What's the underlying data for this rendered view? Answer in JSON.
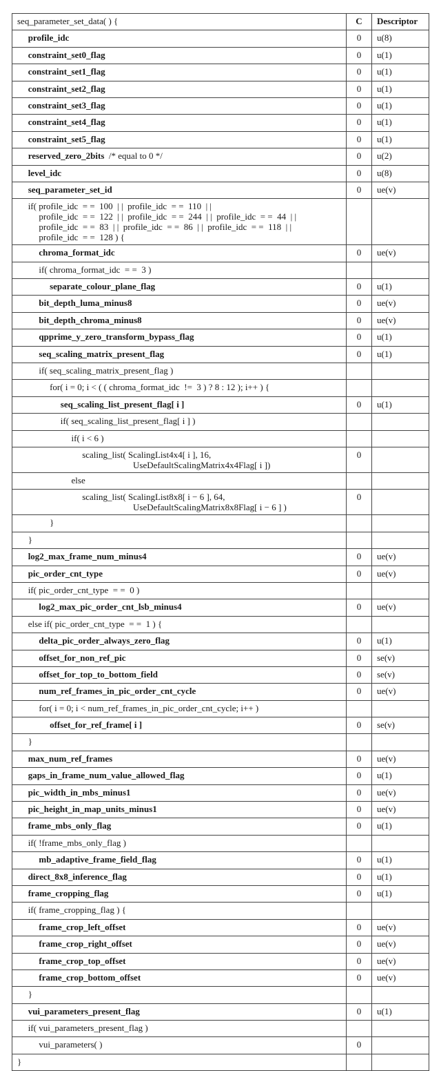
{
  "header": {
    "syntax": "seq_parameter_set_data( ) {",
    "c": "C",
    "descriptor": "Descriptor"
  },
  "rows": [
    {
      "d": 1,
      "b": true,
      "lines": [
        "profile_idc"
      ],
      "c": "0",
      "desc": "u(8)"
    },
    {
      "d": 1,
      "b": true,
      "lines": [
        "constraint_set0_flag"
      ],
      "c": "0",
      "desc": "u(1)"
    },
    {
      "d": 1,
      "b": true,
      "lines": [
        "constraint_set1_flag"
      ],
      "c": "0",
      "desc": "u(1)"
    },
    {
      "d": 1,
      "b": true,
      "lines": [
        "constraint_set2_flag"
      ],
      "c": "0",
      "desc": "u(1)"
    },
    {
      "d": 1,
      "b": true,
      "lines": [
        "constraint_set3_flag"
      ],
      "c": "0",
      "desc": "u(1)"
    },
    {
      "d": 1,
      "b": true,
      "lines": [
        "constraint_set4_flag"
      ],
      "c": "0",
      "desc": "u(1)"
    },
    {
      "d": 1,
      "b": true,
      "lines": [
        "constraint_set5_flag"
      ],
      "c": "0",
      "desc": "u(1)"
    },
    {
      "d": 1,
      "b": true,
      "lines": [
        "reserved_zero_2bits"
      ],
      "comment": "  /* equal to 0 */",
      "c": "0",
      "desc": "u(2)"
    },
    {
      "d": 1,
      "b": true,
      "lines": [
        "level_idc"
      ],
      "c": "0",
      "desc": "u(8)"
    },
    {
      "d": 1,
      "b": true,
      "lines": [
        "seq_parameter_set_id"
      ],
      "c": "0",
      "desc": "ue(v)"
    },
    {
      "d": 1,
      "b": false,
      "lines": [
        "if( profile_idc  = =  100  | |  profile_idc  = =  110  | |",
        "profile_idc  = =  122  | |  profile_idc  = =  244  | |  profile_idc  = =  44  | |",
        "profile_idc  = =  83  | |  profile_idc  = =  86  | |  profile_idc  = =  118  | |",
        "profile_idc  = =  128 ) {"
      ],
      "c": "",
      "desc": ""
    },
    {
      "d": 2,
      "b": true,
      "lines": [
        "chroma_format_idc"
      ],
      "c": "0",
      "desc": "ue(v)"
    },
    {
      "d": 2,
      "b": false,
      "lines": [
        "if( chroma_format_idc  = =  3 )"
      ],
      "c": "",
      "desc": ""
    },
    {
      "d": 3,
      "b": true,
      "lines": [
        "separate_colour_plane_flag"
      ],
      "c": "0",
      "desc": "u(1)"
    },
    {
      "d": 2,
      "b": true,
      "lines": [
        "bit_depth_luma_minus8"
      ],
      "c": "0",
      "desc": "ue(v)"
    },
    {
      "d": 2,
      "b": true,
      "lines": [
        "bit_depth_chroma_minus8"
      ],
      "c": "0",
      "desc": "ue(v)"
    },
    {
      "d": 2,
      "b": true,
      "lines": [
        "qpprime_y_zero_transform_bypass_flag"
      ],
      "c": "0",
      "desc": "u(1)"
    },
    {
      "d": 2,
      "b": true,
      "lines": [
        "seq_scaling_matrix_present_flag"
      ],
      "c": "0",
      "desc": "u(1)"
    },
    {
      "d": 2,
      "b": false,
      "lines": [
        "if( seq_scaling_matrix_present_flag )"
      ],
      "c": "",
      "desc": ""
    },
    {
      "d": 3,
      "b": false,
      "lines": [
        "for( i = 0; i < ( ( chroma_format_idc  !=  3 ) ? 8 : 12 ); i++ ) {"
      ],
      "c": "",
      "desc": ""
    },
    {
      "d": 4,
      "b": true,
      "lines": [
        "seq_scaling_list_present_flag[ i ]"
      ],
      "c": "0",
      "desc": "u(1)"
    },
    {
      "d": 4,
      "b": false,
      "lines": [
        "if( seq_scaling_list_present_flag[ i ] )"
      ],
      "c": "",
      "desc": ""
    },
    {
      "d": 5,
      "b": false,
      "lines": [
        "if( i < 6 )"
      ],
      "c": "",
      "desc": ""
    },
    {
      "d": 6,
      "b": false,
      "wide": true,
      "lines": [
        "scaling_list( ScalingList4x4[ i ], 16,",
        "UseDefaultScalingMatrix4x4Flag[ i ])"
      ],
      "c": "0",
      "desc": ""
    },
    {
      "d": 5,
      "b": false,
      "lines": [
        "else"
      ],
      "c": "",
      "desc": ""
    },
    {
      "d": 6,
      "b": false,
      "wide": true,
      "lines": [
        "scaling_list( ScalingList8x8[ i − 6 ], 64,",
        "UseDefaultScalingMatrix8x8Flag[ i − 6 ] )"
      ],
      "c": "0",
      "desc": ""
    },
    {
      "d": 3,
      "b": false,
      "lines": [
        "}"
      ],
      "c": "",
      "desc": ""
    },
    {
      "d": 1,
      "b": false,
      "lines": [
        "}"
      ],
      "c": "",
      "desc": ""
    },
    {
      "d": 1,
      "b": true,
      "lines": [
        "log2_max_frame_num_minus4"
      ],
      "c": "0",
      "desc": "ue(v)"
    },
    {
      "d": 1,
      "b": true,
      "lines": [
        "pic_order_cnt_type"
      ],
      "c": "0",
      "desc": "ue(v)"
    },
    {
      "d": 1,
      "b": false,
      "lines": [
        "if( pic_order_cnt_type  = =  0 )"
      ],
      "c": "",
      "desc": ""
    },
    {
      "d": 2,
      "b": true,
      "lines": [
        "log2_max_pic_order_cnt_lsb_minus4"
      ],
      "c": "0",
      "desc": "ue(v)"
    },
    {
      "d": 1,
      "b": false,
      "lines": [
        "else if( pic_order_cnt_type  = =  1 ) {"
      ],
      "c": "",
      "desc": ""
    },
    {
      "d": 2,
      "b": true,
      "lines": [
        "delta_pic_order_always_zero_flag"
      ],
      "c": "0",
      "desc": "u(1)"
    },
    {
      "d": 2,
      "b": true,
      "lines": [
        "offset_for_non_ref_pic"
      ],
      "c": "0",
      "desc": "se(v)"
    },
    {
      "d": 2,
      "b": true,
      "lines": [
        "offset_for_top_to_bottom_field"
      ],
      "c": "0",
      "desc": "se(v)"
    },
    {
      "d": 2,
      "b": true,
      "lines": [
        "num_ref_frames_in_pic_order_cnt_cycle"
      ],
      "c": "0",
      "desc": "ue(v)"
    },
    {
      "d": 2,
      "b": false,
      "lines": [
        "for( i = 0; i < num_ref_frames_in_pic_order_cnt_cycle; i++ )"
      ],
      "c": "",
      "desc": ""
    },
    {
      "d": 3,
      "b": true,
      "lines": [
        "offset_for_ref_frame[ i ]"
      ],
      "c": "0",
      "desc": "se(v)"
    },
    {
      "d": 1,
      "b": false,
      "lines": [
        "}"
      ],
      "c": "",
      "desc": ""
    },
    {
      "d": 1,
      "b": true,
      "lines": [
        "max_num_ref_frames"
      ],
      "c": "0",
      "desc": "ue(v)"
    },
    {
      "d": 1,
      "b": true,
      "lines": [
        "gaps_in_frame_num_value_allowed_flag"
      ],
      "c": "0",
      "desc": "u(1)"
    },
    {
      "d": 1,
      "b": true,
      "lines": [
        "pic_width_in_mbs_minus1"
      ],
      "c": "0",
      "desc": "ue(v)"
    },
    {
      "d": 1,
      "b": true,
      "lines": [
        "pic_height_in_map_units_minus1"
      ],
      "c": "0",
      "desc": "ue(v)"
    },
    {
      "d": 1,
      "b": true,
      "lines": [
        "frame_mbs_only_flag"
      ],
      "c": "0",
      "desc": "u(1)"
    },
    {
      "d": 1,
      "b": false,
      "lines": [
        "if( !frame_mbs_only_flag )"
      ],
      "c": "",
      "desc": ""
    },
    {
      "d": 2,
      "b": true,
      "lines": [
        "mb_adaptive_frame_field_flag"
      ],
      "c": "0",
      "desc": "u(1)"
    },
    {
      "d": 1,
      "b": true,
      "lines": [
        "direct_8x8_inference_flag"
      ],
      "c": "0",
      "desc": "u(1)"
    },
    {
      "d": 1,
      "b": true,
      "lines": [
        "frame_cropping_flag"
      ],
      "c": "0",
      "desc": "u(1)"
    },
    {
      "d": 1,
      "b": false,
      "lines": [
        "if( frame_cropping_flag ) {"
      ],
      "c": "",
      "desc": ""
    },
    {
      "d": 2,
      "b": true,
      "lines": [
        "frame_crop_left_offset"
      ],
      "c": "0",
      "desc": "ue(v)"
    },
    {
      "d": 2,
      "b": true,
      "lines": [
        "frame_crop_right_offset"
      ],
      "c": "0",
      "desc": "ue(v)"
    },
    {
      "d": 2,
      "b": true,
      "lines": [
        "frame_crop_top_offset"
      ],
      "c": "0",
      "desc": "ue(v)"
    },
    {
      "d": 2,
      "b": true,
      "lines": [
        "frame_crop_bottom_offset"
      ],
      "c": "0",
      "desc": "ue(v)"
    },
    {
      "d": 1,
      "b": false,
      "lines": [
        "}"
      ],
      "c": "",
      "desc": ""
    },
    {
      "d": 1,
      "b": true,
      "lines": [
        "vui_parameters_present_flag"
      ],
      "c": "0",
      "desc": "u(1)"
    },
    {
      "d": 1,
      "b": false,
      "lines": [
        "if( vui_parameters_present_flag )"
      ],
      "c": "",
      "desc": ""
    },
    {
      "d": 2,
      "b": false,
      "lines": [
        "vui_parameters( )"
      ],
      "c": "0",
      "desc": ""
    },
    {
      "d": 0,
      "b": false,
      "lines": [
        "}"
      ],
      "c": "",
      "desc": ""
    }
  ]
}
